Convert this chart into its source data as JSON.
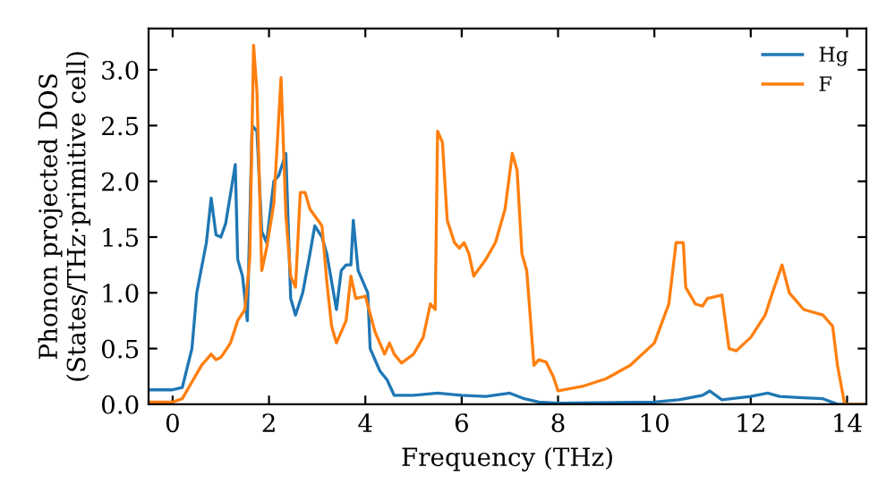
{
  "chart_data": {
    "type": "line",
    "xlabel": "Frequency (THz)",
    "ylabel": "Phonon projected DOS\n(States/THz·primitive cell)",
    "xlim": [
      -0.5,
      14.4
    ],
    "ylim": [
      0,
      3.37
    ],
    "xticks": [
      0,
      2,
      4,
      6,
      8,
      10,
      12,
      14
    ],
    "yticks": [
      {
        "value": 0,
        "label": "0.0"
      },
      0.5,
      {
        "value": 1,
        "label": "1.0"
      },
      1.5,
      {
        "value": 2,
        "label": "2.0"
      },
      2.5,
      {
        "value": 3,
        "label": "3.0"
      }
    ],
    "grid": false,
    "legend": "top right",
    "marker": "none",
    "line_style": "solid",
    "series": [
      {
        "name": "Hg",
        "color": "#1f77b4",
        "x": [
          -0.5,
          0,
          0.2,
          0.4,
          0.5,
          0.7,
          0.8,
          0.9,
          1.0,
          1.1,
          1.3,
          1.35,
          1.45,
          1.55,
          1.65,
          1.75,
          1.85,
          1.95,
          2.1,
          2.2,
          2.35,
          2.45,
          2.55,
          2.7,
          2.85,
          2.95,
          3.1,
          3.2,
          3.4,
          3.5,
          3.6,
          3.7,
          3.75,
          3.85,
          4.05,
          4.1,
          4.3,
          4.45,
          4.6,
          5.0,
          5.5,
          6.0,
          6.5,
          7.0,
          7.3,
          7.6,
          8.0,
          10.0,
          10.5,
          11.0,
          11.15,
          11.4,
          12.0,
          12.35,
          12.6,
          13.0,
          13.5,
          13.8,
          14.4
        ],
        "values": [
          0.13,
          0.13,
          0.15,
          0.5,
          1.0,
          1.45,
          1.85,
          1.52,
          1.5,
          1.62,
          2.15,
          1.3,
          1.15,
          0.75,
          2.5,
          2.45,
          1.55,
          1.45,
          2.0,
          2.05,
          2.25,
          0.95,
          0.8,
          1.0,
          1.35,
          1.6,
          1.5,
          1.35,
          0.85,
          1.2,
          1.25,
          1.25,
          1.65,
          1.2,
          1.0,
          0.5,
          0.3,
          0.22,
          0.08,
          0.08,
          0.1,
          0.08,
          0.07,
          0.1,
          0.05,
          0.02,
          0.01,
          0.02,
          0.04,
          0.08,
          0.12,
          0.04,
          0.07,
          0.1,
          0.07,
          0.06,
          0.05,
          0.0,
          0.0
        ]
      },
      {
        "name": "F",
        "color": "#ff7f0e",
        "x": [
          -0.5,
          0,
          0.2,
          0.4,
          0.6,
          0.8,
          0.9,
          1.0,
          1.2,
          1.35,
          1.5,
          1.6,
          1.68,
          1.75,
          1.85,
          1.95,
          2.1,
          2.25,
          2.35,
          2.45,
          2.55,
          2.65,
          2.75,
          2.85,
          3.1,
          3.2,
          3.3,
          3.4,
          3.6,
          3.7,
          3.8,
          4.0,
          4.2,
          4.4,
          4.5,
          4.6,
          4.75,
          5.0,
          5.2,
          5.35,
          5.45,
          5.5,
          5.6,
          5.7,
          5.85,
          5.95,
          6.05,
          6.15,
          6.25,
          6.5,
          6.7,
          6.9,
          7.05,
          7.15,
          7.25,
          7.35,
          7.5,
          7.6,
          7.75,
          7.9,
          8.0,
          8.5,
          9.0,
          9.5,
          10.0,
          10.3,
          10.45,
          10.6,
          10.65,
          10.85,
          11.0,
          11.1,
          11.4,
          11.55,
          11.7,
          12.0,
          12.3,
          12.45,
          12.65,
          12.8,
          13.1,
          13.5,
          13.7,
          13.8,
          13.95,
          14.4
        ],
        "values": [
          0.02,
          0.02,
          0.05,
          0.2,
          0.35,
          0.45,
          0.4,
          0.42,
          0.55,
          0.75,
          0.85,
          1.3,
          3.22,
          2.8,
          1.2,
          1.4,
          1.8,
          2.93,
          1.7,
          1.15,
          1.05,
          1.9,
          1.9,
          1.75,
          1.6,
          1.1,
          0.7,
          0.55,
          0.75,
          1.15,
          0.95,
          0.97,
          0.65,
          0.45,
          0.55,
          0.45,
          0.37,
          0.45,
          0.6,
          0.9,
          0.85,
          2.45,
          2.35,
          1.65,
          1.45,
          1.4,
          1.45,
          1.35,
          1.15,
          1.3,
          1.45,
          1.75,
          2.25,
          2.1,
          1.35,
          1.2,
          0.35,
          0.4,
          0.38,
          0.25,
          0.12,
          0.16,
          0.23,
          0.35,
          0.55,
          0.9,
          1.45,
          1.45,
          1.05,
          0.9,
          0.88,
          0.95,
          0.98,
          0.5,
          0.48,
          0.6,
          0.8,
          1.0,
          1.25,
          1.0,
          0.85,
          0.8,
          0.7,
          0.35,
          0.0,
          0.0
        ]
      }
    ]
  }
}
